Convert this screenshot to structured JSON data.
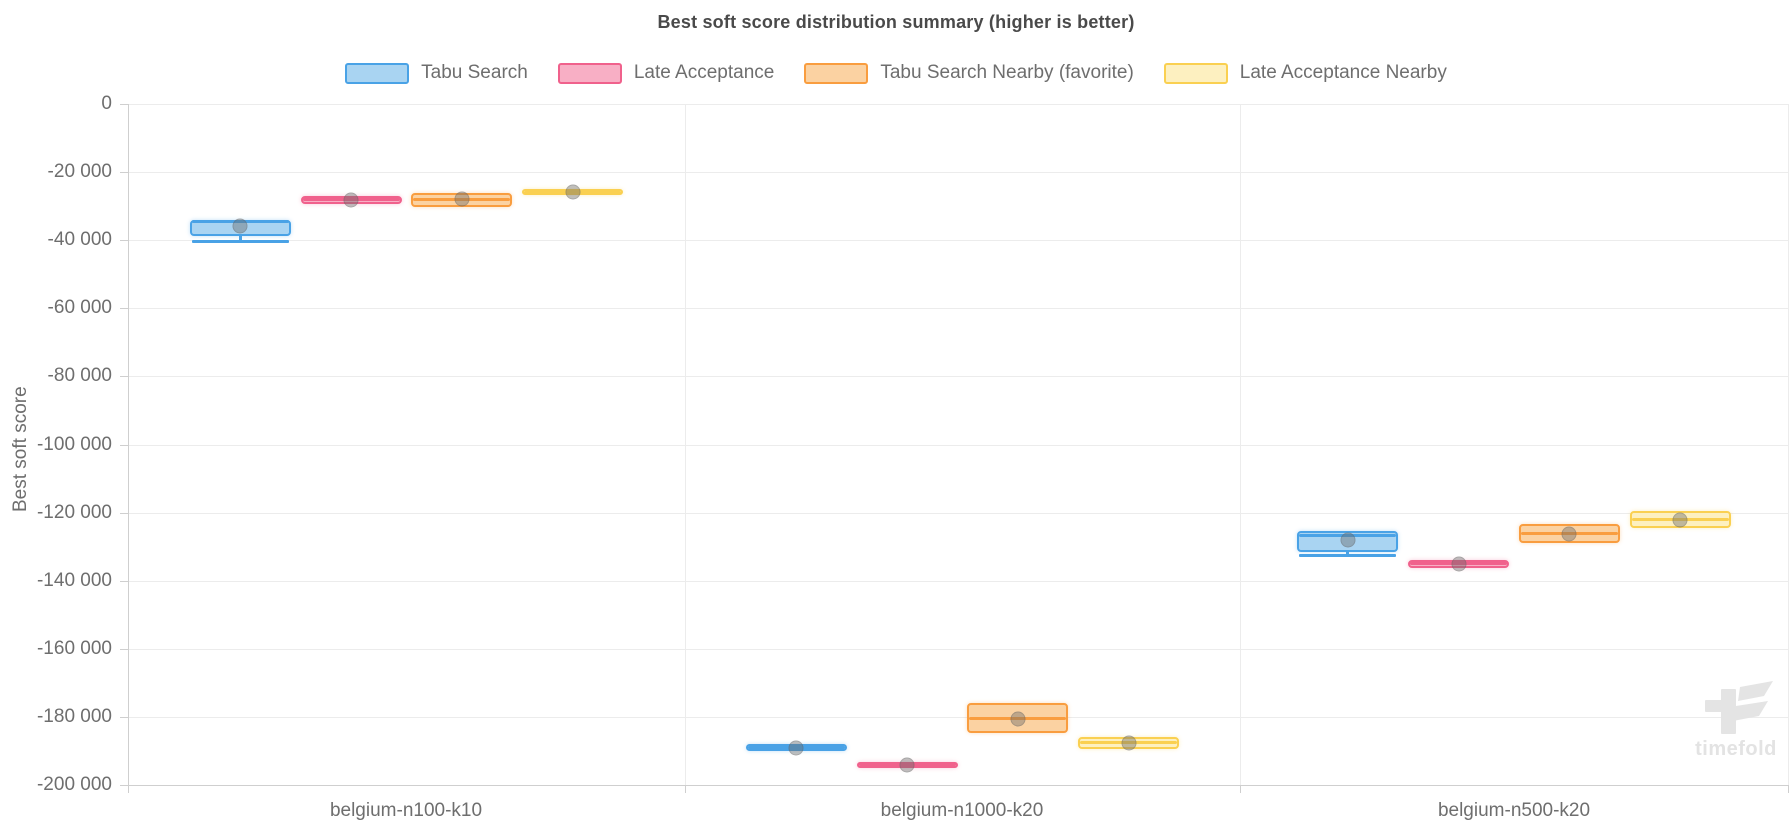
{
  "chart_data": {
    "type": "boxplot",
    "title": "Best soft score distribution summary (higher is better)",
    "ylabel": "Best soft score",
    "ylim": [
      -200000,
      0
    ],
    "y_tick_step": 20000,
    "y_tick_labels": [
      "0",
      "-20 000",
      "-40 000",
      "-60 000",
      "-80 000",
      "-100 000",
      "-120 000",
      "-140 000",
      "-160 000",
      "-180 000",
      "-200 000"
    ],
    "grid": true,
    "legend_position": "top",
    "categories": [
      "belgium-n100-k10",
      "belgium-n1000-k20",
      "belgium-n500-k20"
    ],
    "series": [
      {
        "name": "Tabu Search",
        "color": "#49a2e6",
        "fill": "#a9d4f2",
        "boxes": [
          {
            "q3": -34000,
            "median": -34600,
            "q1": -38800,
            "whisker_low": -40100,
            "mean": -35800
          },
          {
            "q3": -188100,
            "median": -189100,
            "q1": -190100,
            "mean": -189100
          },
          {
            "q3": -125400,
            "median": -126700,
            "q1": -131600,
            "whisker_low": -132400,
            "mean": -128000
          }
        ]
      },
      {
        "name": "Late Acceptance",
        "color": "#f0618c",
        "fill": "#f8afc5",
        "boxes": [
          {
            "q3": -27000,
            "median": -28100,
            "q1": -29400,
            "mean": -28200
          },
          {
            "q3": -193300,
            "median": -194100,
            "q1": -194900,
            "mean": -194100
          },
          {
            "q3": -133900,
            "median": -135000,
            "q1": -136200,
            "mean": -135100
          }
        ]
      },
      {
        "name": "Tabu Search Nearby (favorite)",
        "color": "#f99d3f",
        "fill": "#fbd2a2",
        "boxes": [
          {
            "q3": -26000,
            "median": -28000,
            "q1": -30400,
            "mean": -27900
          },
          {
            "q3": -176000,
            "median": -180500,
            "q1": -184800,
            "mean": -180700
          },
          {
            "q3": -123300,
            "median": -126100,
            "q1": -129000,
            "mean": -126300
          }
        ]
      },
      {
        "name": "Late Acceptance Nearby",
        "color": "#fad051",
        "fill": "#fdf0c0",
        "boxes": [
          {
            "q3": -25100,
            "median": -25900,
            "q1": -26800,
            "mean": -25900
          },
          {
            "q3": -185900,
            "median": -187600,
            "q1": -189400,
            "mean": -187600
          },
          {
            "q3": -119600,
            "median": -122100,
            "q1": -124500,
            "mean": -122100
          }
        ]
      }
    ],
    "watermark": "timefold"
  }
}
